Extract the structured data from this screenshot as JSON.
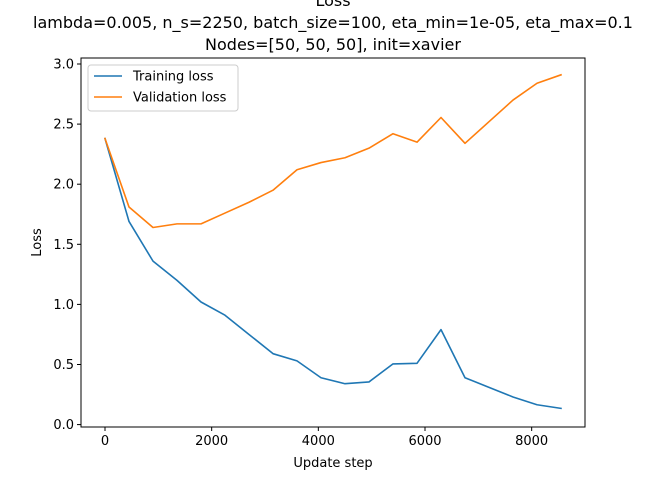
{
  "chart_data": {
    "type": "line",
    "title_lines": [
      "Loss",
      "lambda=0.005, n_s=2250, batch_size=100, eta_min=1e-05, eta_max=0.1",
      "Nodes=[50, 50, 50], init=xavier"
    ],
    "xlabel": "Update step",
    "ylabel": "Loss",
    "xlim": [
      -450,
      9000
    ],
    "ylim": [
      -0.02,
      3.05
    ],
    "xticks": [
      0,
      2000,
      4000,
      6000,
      8000
    ],
    "xtick_labels": [
      "0",
      "2000",
      "4000",
      "6000",
      "8000"
    ],
    "yticks": [
      0.0,
      0.5,
      1.0,
      1.5,
      2.0,
      2.5,
      3.0
    ],
    "ytick_labels": [
      "0.0",
      "0.5",
      "1.0",
      "1.5",
      "2.0",
      "2.5",
      "3.0"
    ],
    "grid": false,
    "legend_position": "upper-left",
    "x": [
      0,
      450,
      900,
      1350,
      1800,
      2250,
      2700,
      3150,
      3600,
      4050,
      4500,
      4950,
      5400,
      5850,
      6300,
      6750,
      7200,
      7650,
      8100,
      8550
    ],
    "series": [
      {
        "name": "Training loss",
        "color": "#1f77b4",
        "values": [
          2.38,
          1.69,
          1.36,
          1.2,
          1.02,
          0.91,
          0.75,
          0.59,
          0.53,
          0.39,
          0.34,
          0.355,
          0.505,
          0.51,
          0.79,
          0.39,
          0.31,
          0.23,
          0.165,
          0.135
        ]
      },
      {
        "name": "Validation loss",
        "color": "#ff7f0e",
        "values": [
          2.38,
          1.81,
          1.64,
          1.67,
          1.67,
          1.76,
          1.85,
          1.95,
          2.12,
          2.18,
          2.22,
          2.3,
          2.42,
          2.35,
          2.555,
          2.34,
          2.52,
          2.7,
          2.84,
          2.91
        ]
      }
    ]
  }
}
